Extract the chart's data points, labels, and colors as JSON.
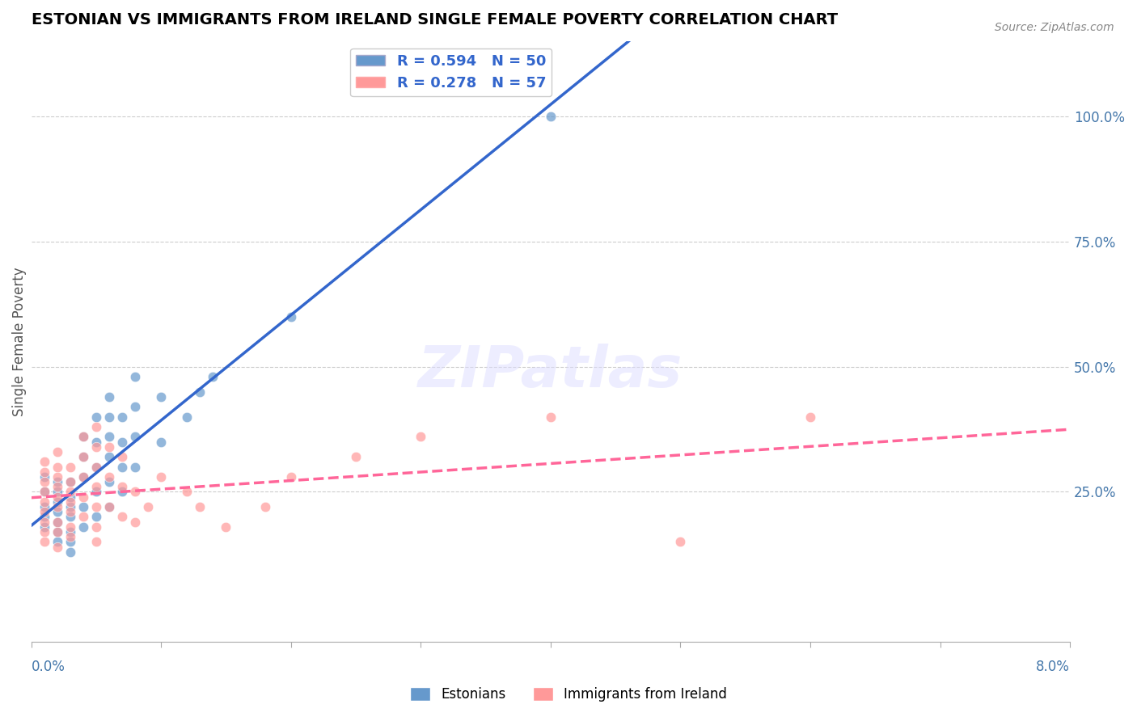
{
  "title": "ESTONIAN VS IMMIGRANTS FROM IRELAND SINGLE FEMALE POVERTY CORRELATION CHART",
  "source": "Source: ZipAtlas.com",
  "xlabel": "",
  "ylabel": "Single Female Poverty",
  "xlim": [
    0.0,
    0.08
  ],
  "ylim": [
    -0.05,
    1.15
  ],
  "xticks": [
    0.0,
    0.01,
    0.02,
    0.03,
    0.04,
    0.05,
    0.06,
    0.07,
    0.08
  ],
  "ytick_positions": [
    0.25,
    0.5,
    0.75,
    1.0
  ],
  "ytick_labels": [
    "25.0%",
    "50.0%",
    "75.0%",
    "100.0%"
  ],
  "legend_R1": "R = 0.594",
  "legend_N1": "N = 50",
  "legend_R2": "R = 0.278",
  "legend_N2": "N = 57",
  "color_estonian": "#6699CC",
  "color_ireland": "#FF9999",
  "color_line_estonian": "#3366CC",
  "color_line_ireland": "#FF6699",
  "watermark": "ZIPatlas",
  "background_color": "#FFFFFF",
  "estonian_x": [
    0.001,
    0.001,
    0.001,
    0.001,
    0.001,
    0.002,
    0.002,
    0.002,
    0.002,
    0.002,
    0.002,
    0.002,
    0.003,
    0.003,
    0.003,
    0.003,
    0.003,
    0.003,
    0.003,
    0.004,
    0.004,
    0.004,
    0.004,
    0.004,
    0.005,
    0.005,
    0.005,
    0.005,
    0.005,
    0.006,
    0.006,
    0.006,
    0.006,
    0.006,
    0.006,
    0.007,
    0.007,
    0.007,
    0.007,
    0.008,
    0.008,
    0.008,
    0.008,
    0.01,
    0.01,
    0.012,
    0.013,
    0.014,
    0.02,
    0.04
  ],
  "estonian_y": [
    0.18,
    0.2,
    0.22,
    0.25,
    0.28,
    0.15,
    0.17,
    0.19,
    0.21,
    0.23,
    0.25,
    0.27,
    0.13,
    0.15,
    0.17,
    0.2,
    0.22,
    0.24,
    0.27,
    0.18,
    0.22,
    0.28,
    0.32,
    0.36,
    0.2,
    0.25,
    0.3,
    0.35,
    0.4,
    0.22,
    0.27,
    0.32,
    0.36,
    0.4,
    0.44,
    0.25,
    0.3,
    0.35,
    0.4,
    0.3,
    0.36,
    0.42,
    0.48,
    0.35,
    0.44,
    0.4,
    0.45,
    0.48,
    0.6,
    1.0
  ],
  "ireland_x": [
    0.001,
    0.001,
    0.001,
    0.001,
    0.001,
    0.001,
    0.001,
    0.001,
    0.001,
    0.002,
    0.002,
    0.002,
    0.002,
    0.002,
    0.002,
    0.002,
    0.002,
    0.002,
    0.003,
    0.003,
    0.003,
    0.003,
    0.003,
    0.003,
    0.003,
    0.004,
    0.004,
    0.004,
    0.004,
    0.004,
    0.005,
    0.005,
    0.005,
    0.005,
    0.005,
    0.005,
    0.005,
    0.006,
    0.006,
    0.006,
    0.007,
    0.007,
    0.007,
    0.008,
    0.008,
    0.009,
    0.01,
    0.012,
    0.013,
    0.015,
    0.018,
    0.02,
    0.025,
    0.03,
    0.04,
    0.05,
    0.06
  ],
  "ireland_y": [
    0.15,
    0.17,
    0.19,
    0.21,
    0.23,
    0.25,
    0.27,
    0.29,
    0.31,
    0.14,
    0.17,
    0.19,
    0.22,
    0.24,
    0.26,
    0.28,
    0.3,
    0.33,
    0.16,
    0.18,
    0.21,
    0.23,
    0.25,
    0.27,
    0.3,
    0.2,
    0.24,
    0.28,
    0.32,
    0.36,
    0.15,
    0.18,
    0.22,
    0.26,
    0.3,
    0.34,
    0.38,
    0.22,
    0.28,
    0.34,
    0.2,
    0.26,
    0.32,
    0.19,
    0.25,
    0.22,
    0.28,
    0.25,
    0.22,
    0.18,
    0.22,
    0.28,
    0.32,
    0.36,
    0.4,
    0.15,
    0.4
  ],
  "figsize": [
    14.06,
    8.92
  ],
  "dpi": 100
}
